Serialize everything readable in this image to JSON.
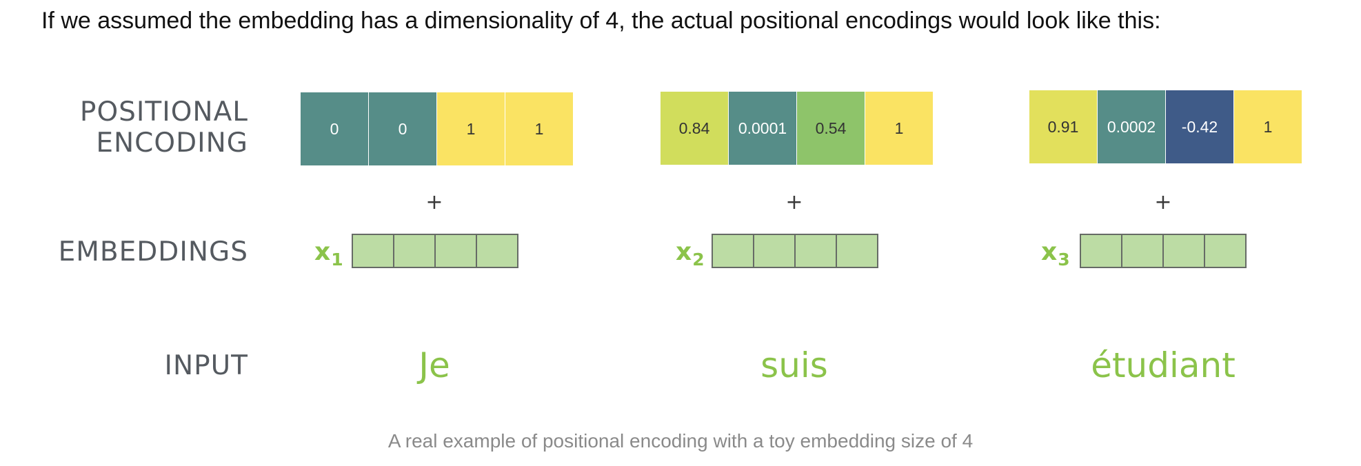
{
  "intro_text": "If we assumed the embedding has a dimensionality of 4, the actual positional encodings would look like this:",
  "labels": {
    "positional_encoding_line1": "POSITIONAL",
    "positional_encoding_line2": "ENCODING",
    "embeddings": "EMBEDDINGS",
    "input": "INPUT"
  },
  "columns": [
    {
      "pe": [
        {
          "value": "0",
          "color": "#568d88",
          "text_color": "#ffffff"
        },
        {
          "value": "0",
          "color": "#568d88",
          "text_color": "#ffffff"
        },
        {
          "value": "1",
          "color": "#fae363",
          "text_color": "#333333"
        },
        {
          "value": "1",
          "color": "#fae363",
          "text_color": "#333333"
        }
      ],
      "plus": "+",
      "x_symbol": "x",
      "x_subscript": "1",
      "word": "Je"
    },
    {
      "pe": [
        {
          "value": "0.84",
          "color": "#d1dd5c",
          "text_color": "#333333"
        },
        {
          "value": "0.0001",
          "color": "#568d88",
          "text_color": "#ffffff"
        },
        {
          "value": "0.54",
          "color": "#8ec46a",
          "text_color": "#333333"
        },
        {
          "value": "1",
          "color": "#fae363",
          "text_color": "#333333"
        }
      ],
      "plus": "+",
      "x_symbol": "x",
      "x_subscript": "2",
      "word": "suis"
    },
    {
      "pe": [
        {
          "value": "0.91",
          "color": "#e2e05c",
          "text_color": "#333333"
        },
        {
          "value": "0.0002",
          "color": "#568d88",
          "text_color": "#ffffff"
        },
        {
          "value": "-0.42",
          "color": "#3f5b88",
          "text_color": "#ffffff"
        },
        {
          "value": "1",
          "color": "#fae363",
          "text_color": "#333333"
        }
      ],
      "plus": "+",
      "x_symbol": "x",
      "x_subscript": "3",
      "word": "étudiant"
    }
  ],
  "caption": "A real example of positional encoding with a toy embedding size of 4",
  "colors": {
    "label_gray": "#555a60",
    "word_green": "#8bc34a",
    "embedding_cell": "#bcdca4",
    "caption_gray": "#8a8a8a"
  }
}
